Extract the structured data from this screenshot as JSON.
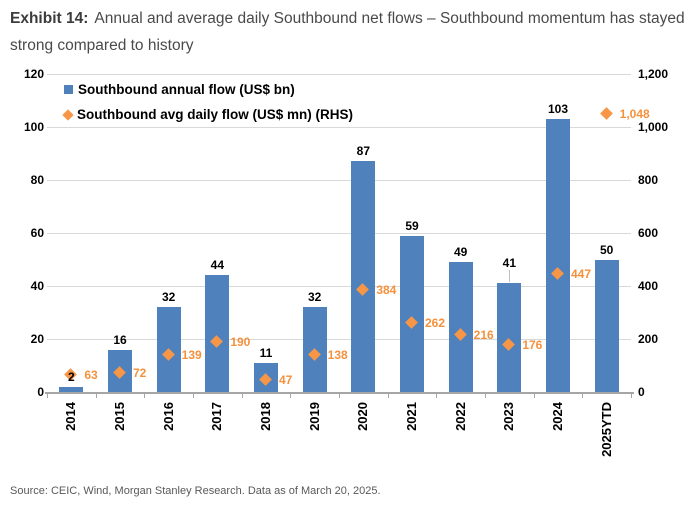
{
  "header": {
    "exhibit_label": "Exhibit 14:",
    "title": "Annual and average daily Southbound net flows – Southbound momentum has stayed strong compared to history"
  },
  "legend": [
    {
      "label": "Southbound annual flow (US$ bn)",
      "marker": "square",
      "color": "#4F81BD"
    },
    {
      "label": "Southbound avg daily flow (US$ mn) (RHS)",
      "marker": "diamond",
      "color": "#F79646"
    }
  ],
  "chart_data": {
    "type": "bar",
    "categories": [
      "2014",
      "2015",
      "2016",
      "2017",
      "2018",
      "2019",
      "2020",
      "2021",
      "2022",
      "2023",
      "2024",
      "2025YTD"
    ],
    "series": [
      {
        "name": "Southbound annual flow (US$ bn)",
        "type": "bar",
        "axis": "left",
        "color": "#4F81BD",
        "values": [
          2,
          16,
          32,
          44,
          11,
          32,
          87,
          59,
          49,
          41,
          103,
          50
        ],
        "labels": [
          "2",
          "16",
          "32",
          "44",
          "11",
          "32",
          "87",
          "59",
          "49",
          "41",
          "103",
          "50"
        ]
      },
      {
        "name": "Southbound avg daily flow (US$ mn) (RHS)",
        "type": "scatter",
        "marker": "diamond",
        "axis": "right",
        "color": "#F79646",
        "values": [
          63,
          72,
          139,
          190,
          47,
          138,
          384,
          262,
          216,
          176,
          447,
          1048
        ],
        "labels": [
          "63",
          "72",
          "139",
          "190",
          "47",
          "138",
          "384",
          "262",
          "216",
          "176",
          "447",
          "1,048"
        ]
      }
    ],
    "left_axis": {
      "min": 0,
      "max": 120,
      "step": 20,
      "ticks": [
        "0",
        "20",
        "40",
        "60",
        "80",
        "100",
        "120"
      ]
    },
    "right_axis": {
      "min": 0,
      "max": 1200,
      "step": 200,
      "ticks": [
        "0",
        "200",
        "400",
        "600",
        "800",
        "1,000",
        "1,200"
      ]
    },
    "grid": true,
    "legend_position": "top-left",
    "callouts": [
      {
        "category": "2023",
        "series": 0,
        "leader_line": true
      }
    ]
  },
  "footer": {
    "source": "Source: CEIC, Wind, Morgan Stanley Research. Data as of March 20, 2025."
  },
  "colors": {
    "bar": "#4F81BD",
    "diamond": "#F79646",
    "diamond_label": "#F5913D",
    "bar_label": "#000000",
    "gridline": "#D9D9D9",
    "axis": "#A6A6A6",
    "leader": "#BFBFBF",
    "title": "#3C3C3C",
    "source": "#595959"
  }
}
